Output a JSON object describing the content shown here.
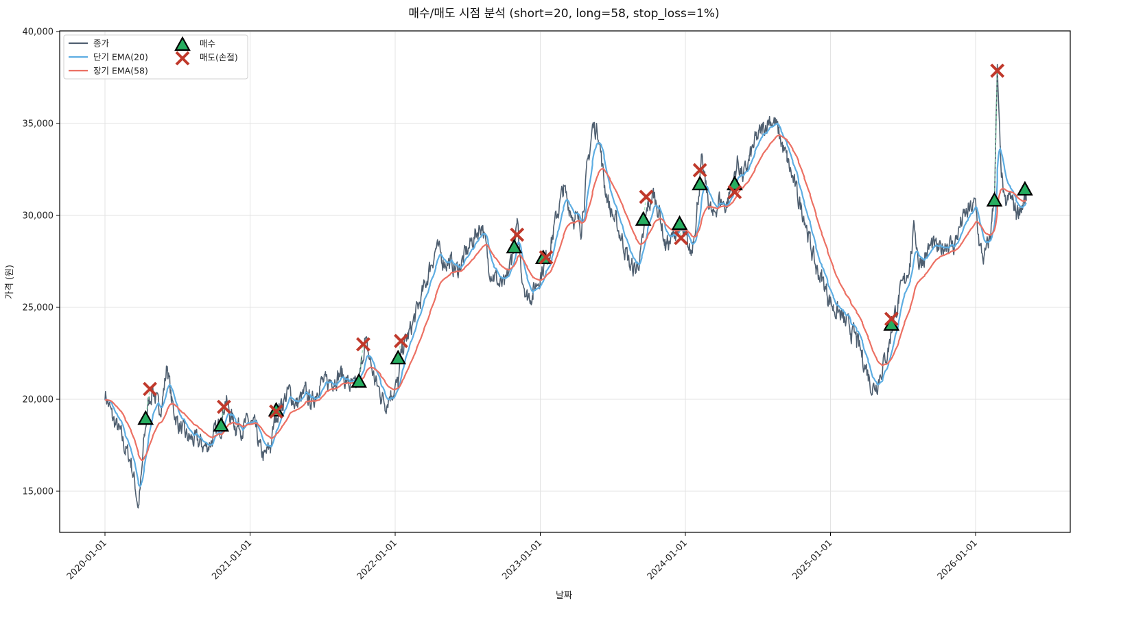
{
  "chart_data": {
    "type": "line",
    "title": "매수/매도 시점 분석 (short=20, long=58, stop_loss=1%)",
    "xlabel": "날짜",
    "ylabel": "가격 (원)",
    "ylim": [
      12800,
      40050
    ],
    "xlim": [
      2019.69,
      2026.64
    ],
    "grid": true,
    "legend_position": "top-left",
    "y_ticks": [
      15000,
      20000,
      25000,
      30000,
      35000,
      40000
    ],
    "y_tick_labels": [
      "15,000",
      "20,000",
      "25,000",
      "30,000",
      "35,000",
      "40,000"
    ],
    "x_ticks": [
      2020,
      2021,
      2022,
      2023,
      2024,
      2025,
      2026
    ],
    "x_tick_labels": [
      "2020-01-01",
      "2021-01-01",
      "2022-01-01",
      "2023-01-01",
      "2024-01-01",
      "2025-01-01",
      "2026-01-01"
    ],
    "legend": [
      {
        "label": "종가",
        "kind": "line",
        "color": "#4f5f70"
      },
      {
        "label": "단기 EMA(20)",
        "kind": "line",
        "color": "#5dade2"
      },
      {
        "label": "장기 EMA(58)",
        "kind": "line",
        "color": "#ec7063"
      },
      {
        "label": "매수",
        "kind": "triangle",
        "color": "#27ae60"
      },
      {
        "label": "매도(손절)",
        "kind": "x",
        "color": "#c0392b"
      }
    ],
    "series": [
      {
        "name": "종가",
        "color": "#4f5f70",
        "points": [
          [
            2020.0,
            20400
          ],
          [
            2020.05,
            19000
          ],
          [
            2020.1,
            18200
          ],
          [
            2020.14,
            17300
          ],
          [
            2020.18,
            16600
          ],
          [
            2020.21,
            15200
          ],
          [
            2020.23,
            14200
          ],
          [
            2020.25,
            15600
          ],
          [
            2020.27,
            17800
          ],
          [
            2020.3,
            19800
          ],
          [
            2020.33,
            20600
          ],
          [
            2020.37,
            19400
          ],
          [
            2020.4,
            20200
          ],
          [
            2020.43,
            21900
          ],
          [
            2020.46,
            19800
          ],
          [
            2020.5,
            18800
          ],
          [
            2020.55,
            18000
          ],
          [
            2020.6,
            17800
          ],
          [
            2020.65,
            17600
          ],
          [
            2020.7,
            17400
          ],
          [
            2020.75,
            18000
          ],
          [
            2020.8,
            18600
          ],
          [
            2020.83,
            20100
          ],
          [
            2020.86,
            19200
          ],
          [
            2020.9,
            18600
          ],
          [
            2020.95,
            18500
          ],
          [
            2021.0,
            18700
          ],
          [
            2021.04,
            18300
          ],
          [
            2021.07,
            17200
          ],
          [
            2021.1,
            16800
          ],
          [
            2021.14,
            17400
          ],
          [
            2021.18,
            19200
          ],
          [
            2021.22,
            19800
          ],
          [
            2021.27,
            20400
          ],
          [
            2021.32,
            19700
          ],
          [
            2021.38,
            20300
          ],
          [
            2021.43,
            19800
          ],
          [
            2021.48,
            21000
          ],
          [
            2021.52,
            20800
          ],
          [
            2021.58,
            21200
          ],
          [
            2021.63,
            21400
          ],
          [
            2021.68,
            20800
          ],
          [
            2021.73,
            20500
          ],
          [
            2021.76,
            21300
          ],
          [
            2021.79,
            23200
          ],
          [
            2021.82,
            22300
          ],
          [
            2021.86,
            21000
          ],
          [
            2021.9,
            20300
          ],
          [
            2021.93,
            19800
          ],
          [
            2021.97,
            20400
          ],
          [
            2022.02,
            20800
          ],
          [
            2022.05,
            22800
          ],
          [
            2022.1,
            23600
          ],
          [
            2022.15,
            24800
          ],
          [
            2022.2,
            26000
          ],
          [
            2022.24,
            27200
          ],
          [
            2022.28,
            28200
          ],
          [
            2022.33,
            27600
          ],
          [
            2022.38,
            27400
          ],
          [
            2022.43,
            27000
          ],
          [
            2022.48,
            27800
          ],
          [
            2022.55,
            28900
          ],
          [
            2022.6,
            29600
          ],
          [
            2022.64,
            27400
          ],
          [
            2022.68,
            26800
          ],
          [
            2022.72,
            26200
          ],
          [
            2022.76,
            26100
          ],
          [
            2022.8,
            27600
          ],
          [
            2022.84,
            29400
          ],
          [
            2022.87,
            27000
          ],
          [
            2022.91,
            25600
          ],
          [
            2022.95,
            25800
          ],
          [
            2023.0,
            26800
          ],
          [
            2023.04,
            27600
          ],
          [
            2023.08,
            28700
          ],
          [
            2023.12,
            30200
          ],
          [
            2023.16,
            31400
          ],
          [
            2023.2,
            30500
          ],
          [
            2023.24,
            29800
          ],
          [
            2023.28,
            29400
          ],
          [
            2023.32,
            32200
          ],
          [
            2023.36,
            34800
          ],
          [
            2023.4,
            34600
          ],
          [
            2023.44,
            31800
          ],
          [
            2023.48,
            30400
          ],
          [
            2023.52,
            29600
          ],
          [
            2023.57,
            28600
          ],
          [
            2023.62,
            27200
          ],
          [
            2023.66,
            27000
          ],
          [
            2023.7,
            28200
          ],
          [
            2023.74,
            30400
          ],
          [
            2023.78,
            31100
          ],
          [
            2023.82,
            30300
          ],
          [
            2023.86,
            28400
          ],
          [
            2023.9,
            28600
          ],
          [
            2023.95,
            29400
          ],
          [
            2024.0,
            28600
          ],
          [
            2024.04,
            27900
          ],
          [
            2024.08,
            30400
          ],
          [
            2024.11,
            32800
          ],
          [
            2024.15,
            31200
          ],
          [
            2024.19,
            29800
          ],
          [
            2024.23,
            30900
          ],
          [
            2024.28,
            30500
          ],
          [
            2024.33,
            31800
          ],
          [
            2024.36,
            33000
          ],
          [
            2024.4,
            32000
          ],
          [
            2024.44,
            33000
          ],
          [
            2024.48,
            34000
          ],
          [
            2024.53,
            34600
          ],
          [
            2024.58,
            35300
          ],
          [
            2024.62,
            35000
          ],
          [
            2024.66,
            34000
          ],
          [
            2024.7,
            33000
          ],
          [
            2024.74,
            32000
          ],
          [
            2024.78,
            30800
          ],
          [
            2024.82,
            30000
          ],
          [
            2024.86,
            28500
          ],
          [
            2024.9,
            27100
          ],
          [
            2024.94,
            26600
          ],
          [
            2024.98,
            25700
          ],
          [
            2025.02,
            25000
          ],
          [
            2025.06,
            24700
          ],
          [
            2025.1,
            24100
          ],
          [
            2025.14,
            23800
          ],
          [
            2025.18,
            23200
          ],
          [
            2025.22,
            22300
          ],
          [
            2025.26,
            21400
          ],
          [
            2025.29,
            20600
          ],
          [
            2025.32,
            20900
          ],
          [
            2025.36,
            21800
          ],
          [
            2025.4,
            22800
          ],
          [
            2025.43,
            24200
          ],
          [
            2025.47,
            25400
          ],
          [
            2025.51,
            26400
          ],
          [
            2025.55,
            27600
          ],
          [
            2025.58,
            29400
          ],
          [
            2025.61,
            27400
          ],
          [
            2025.65,
            27800
          ],
          [
            2025.7,
            28400
          ],
          [
            2025.75,
            28000
          ],
          [
            2025.8,
            28600
          ],
          [
            2025.85,
            28300
          ],
          [
            2025.9,
            29600
          ],
          [
            2025.95,
            30200
          ],
          [
            2026.0,
            30600
          ],
          [
            2026.03,
            28200
          ],
          [
            2026.06,
            27600
          ],
          [
            2026.1,
            28800
          ],
          [
            2026.13,
            31200
          ],
          [
            2026.15,
            37800
          ],
          [
            2026.17,
            33200
          ],
          [
            2026.2,
            30400
          ],
          [
            2026.24,
            31000
          ],
          [
            2026.28,
            30200
          ],
          [
            2026.32,
            30600
          ],
          [
            2026.35,
            30800
          ]
        ]
      },
      {
        "name": "단기 EMA(20)",
        "color": "#5dade2",
        "period": 20
      },
      {
        "name": "장기 EMA(58)",
        "color": "#ec7063",
        "period": 58
      }
    ],
    "buy_signals": [
      [
        2020.28,
        18950
      ],
      [
        2020.8,
        18580
      ],
      [
        2021.18,
        19400
      ],
      [
        2021.75,
        20970
      ],
      [
        2022.02,
        22240
      ],
      [
        2022.82,
        28280
      ],
      [
        2023.02,
        27690
      ],
      [
        2023.71,
        29780
      ],
      [
        2023.96,
        29550
      ],
      [
        2024.1,
        31710
      ],
      [
        2024.34,
        31710
      ],
      [
        2025.42,
        24070
      ],
      [
        2026.13,
        30820
      ],
      [
        2026.34,
        31420
      ]
    ],
    "sell_signals": [
      [
        2020.31,
        20560
      ],
      [
        2020.82,
        19590
      ],
      [
        2021.18,
        19330
      ],
      [
        2021.78,
        22990
      ],
      [
        2022.04,
        23170
      ],
      [
        2022.84,
        28950
      ],
      [
        2023.04,
        27720
      ],
      [
        2023.73,
        31010
      ],
      [
        2023.97,
        28770
      ],
      [
        2024.1,
        32460
      ],
      [
        2024.34,
        31270
      ],
      [
        2025.42,
        24370
      ],
      [
        2026.15,
        37870
      ]
    ]
  }
}
